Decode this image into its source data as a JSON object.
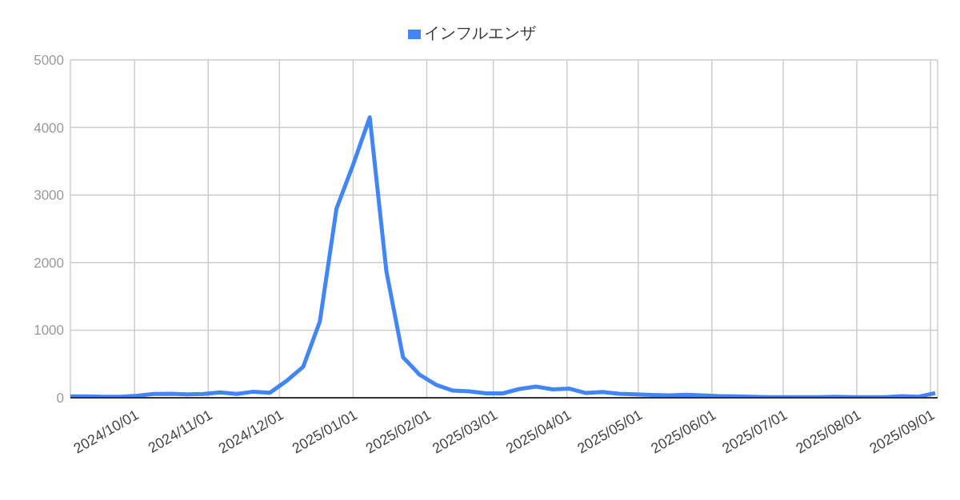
{
  "chart_data": {
    "type": "line",
    "legend": "top",
    "grid": true,
    "marker": "none",
    "line_style": "solid",
    "x": [
      "2024-09-04",
      "2024-09-11",
      "2024-09-18",
      "2024-09-25",
      "2024-10-02",
      "2024-10-09",
      "2024-10-16",
      "2024-10-23",
      "2024-10-30",
      "2024-11-06",
      "2024-11-13",
      "2024-11-20",
      "2024-11-27",
      "2024-12-04",
      "2024-12-11",
      "2024-12-18",
      "2024-12-25",
      "2025-01-01",
      "2025-01-08",
      "2025-01-15",
      "2025-01-22",
      "2025-01-29",
      "2025-02-05",
      "2025-02-12",
      "2025-02-19",
      "2025-02-26",
      "2025-03-05",
      "2025-03-12",
      "2025-03-19",
      "2025-03-26",
      "2025-04-02",
      "2025-04-09",
      "2025-04-16",
      "2025-04-23",
      "2025-04-30",
      "2025-05-07",
      "2025-05-14",
      "2025-05-21",
      "2025-05-28",
      "2025-06-04",
      "2025-06-11",
      "2025-06-18",
      "2025-06-25",
      "2025-07-02",
      "2025-07-09",
      "2025-07-16",
      "2025-07-23",
      "2025-07-30",
      "2025-08-06",
      "2025-08-13",
      "2025-08-20",
      "2025-08-27",
      "2025-09-03"
    ],
    "series": [
      {
        "name": "インフルエンザ",
        "color": "#4285f4",
        "values": [
          20,
          20,
          15,
          15,
          30,
          55,
          60,
          50,
          55,
          80,
          55,
          90,
          75,
          250,
          460,
          1130,
          2800,
          3450,
          4150,
          1870,
          600,
          340,
          190,
          105,
          95,
          65,
          65,
          130,
          165,
          125,
          135,
          70,
          85,
          60,
          50,
          40,
          35,
          45,
          35,
          25,
          20,
          15,
          10,
          10,
          10,
          10,
          15,
          10,
          10,
          10,
          25,
          15,
          70
        ]
      }
    ],
    "xlim": [
      "2024-09-04",
      "2025-09-04"
    ],
    "xticks": [
      {
        "value": "2024-10-01",
        "label": "2024/10/01"
      },
      {
        "value": "2024-11-01",
        "label": "2024/11/01"
      },
      {
        "value": "2024-12-01",
        "label": "2024/12/01"
      },
      {
        "value": "2025-01-01",
        "label": "2025/01/01"
      },
      {
        "value": "2025-02-01",
        "label": "2025/02/01"
      },
      {
        "value": "2025-03-01",
        "label": "2025/03/01"
      },
      {
        "value": "2025-04-01",
        "label": "2025/04/01"
      },
      {
        "value": "2025-05-01",
        "label": "2025/05/01"
      },
      {
        "value": "2025-06-01",
        "label": "2025/06/01"
      },
      {
        "value": "2025-07-01",
        "label": "2025/07/01"
      },
      {
        "value": "2025-08-01",
        "label": "2025/08/01"
      },
      {
        "value": "2025-09-01",
        "label": "2025/09/01"
      }
    ],
    "ylim": [
      0,
      5000
    ],
    "yticks": [
      0,
      1000,
      2000,
      3000,
      4000,
      5000
    ]
  }
}
